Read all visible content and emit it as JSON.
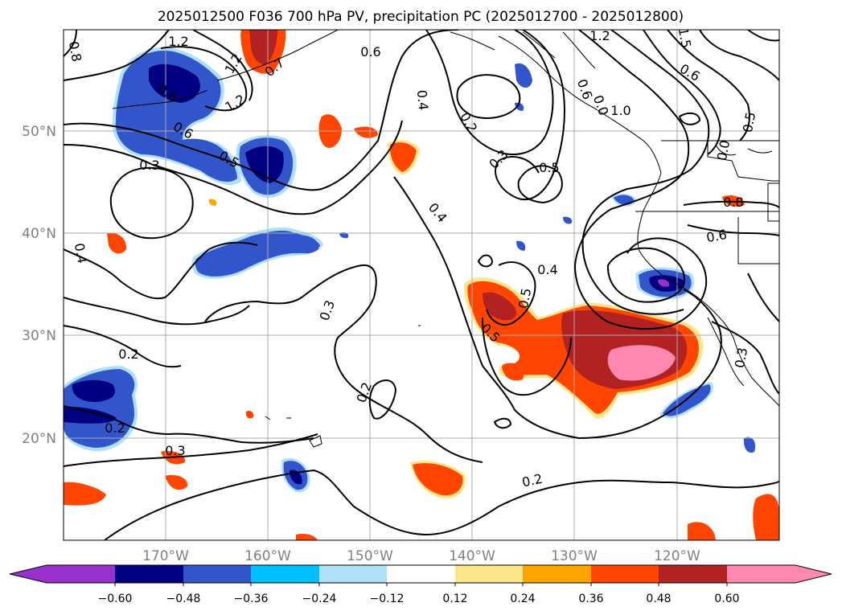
{
  "title": "2025012500 F036 700 hPa PV, precipitation PC (2025012700 - 2025012800)",
  "longitude_labels": [
    "170°W",
    "160°W",
    "150°W",
    "140°W",
    "130°W",
    "120°W"
  ],
  "latitude_labels": [
    "50°N",
    "40°N",
    "30°N",
    "20°N"
  ],
  "colorbar": {
    "tick_labels": [
      "−0.60",
      "−0.48",
      "−0.36",
      "−0.24",
      "−0.12",
      "0.12",
      "0.24",
      "0.36",
      "0.48",
      "0.60"
    ],
    "colors": [
      "#9932cc",
      "#000080",
      "#3355cc",
      "#00bfff",
      "#aee0f8",
      "#ffffff",
      "#fde68a",
      "#ffa500",
      "#ff4500",
      "#b22222",
      "#ff88b0"
    ]
  },
  "contour_labels": [
    "1.2",
    "0.6",
    "1.2",
    "1.5",
    "0.8",
    "0.7",
    "1.2",
    "0.6",
    "0.6",
    "0.5",
    "0.3",
    "1.2",
    "0.6",
    "0.4",
    "0.2",
    "0.3",
    "0.5",
    "0.6",
    "0.0",
    "1.0",
    "0.5",
    "0.0",
    "0.8",
    "0.6",
    "0.4",
    "0.4",
    "0.4",
    "0.5",
    "0.3",
    "0.5",
    "0.3",
    "0.2",
    "0.2",
    "0.2",
    "0.3",
    "0.2"
  ],
  "map_extent": {
    "lon_min": -180,
    "lon_max": -110,
    "lat_min": 10,
    "lat_max": 60
  }
}
